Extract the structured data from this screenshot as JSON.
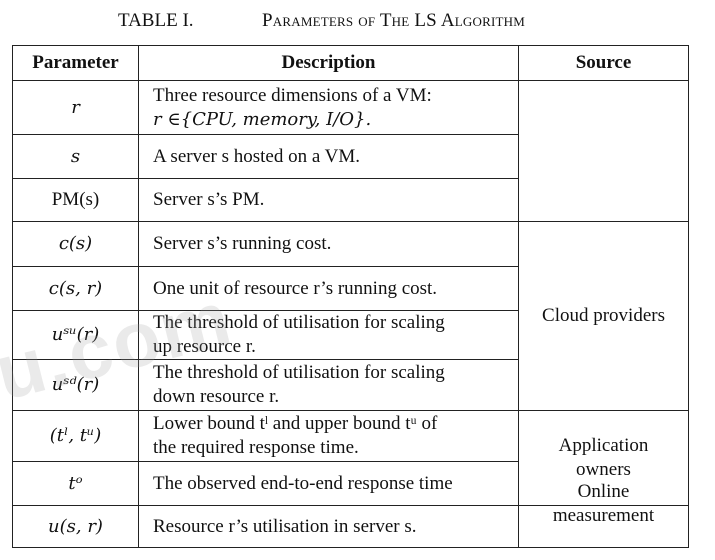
{
  "caption": {
    "label": "TABLE I.",
    "title": "Parameters of The LS Algorithm"
  },
  "headers": {
    "parameter": "Parameter",
    "description": "Description",
    "source": "Source"
  },
  "rows": [
    {
      "param": "r",
      "desc_line1": "Three resource dimensions of a VM:",
      "desc_line2": "r ∈{CPU, memory, I/O}."
    },
    {
      "param": "s",
      "desc_line1": "A server s hosted on a VM.",
      "desc_line2": ""
    },
    {
      "param": "PM(s)",
      "desc_line1": "Server s’s PM.",
      "desc_line2": ""
    },
    {
      "param": "c(s)",
      "desc_line1": "Server s’s running cost.",
      "desc_line2": ""
    },
    {
      "param": "c(s, r)",
      "desc_line1": "One unit of resource r’s running cost.",
      "desc_line2": ""
    },
    {
      "param": "uˢᵘ(r)",
      "desc_line1": "The threshold of utilisation for scaling",
      "desc_line2": "up resource r."
    },
    {
      "param": "uˢᵈ(r)",
      "desc_line1": "The threshold of utilisation for scaling",
      "desc_line2": "down resource r."
    },
    {
      "param": "(tˡ, tᵘ)",
      "desc_line1": "Lower bound tˡ and upper bound tᵘ of",
      "desc_line2": "the required response time."
    },
    {
      "param": "tᵒ",
      "desc_line1": "The observed end-to-end response time",
      "desc_line2": ""
    },
    {
      "param": "u(s, r)",
      "desc_line1": "Resource r’s utilisation in server s.",
      "desc_line2": ""
    }
  ],
  "sources": {
    "cloud": "Cloud providers",
    "app_line1": "Application",
    "app_line2": "owners",
    "online_line1": "Online",
    "online_line2": "measurement"
  },
  "watermark": "u.com"
}
